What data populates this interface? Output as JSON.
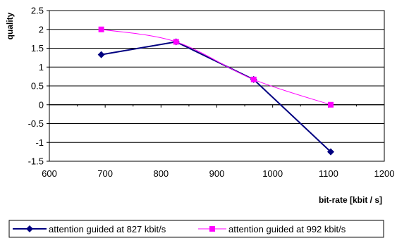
{
  "chart_data": {
    "type": "line",
    "xlabel": "bit-rate [kbit / s]",
    "ylabel": "quality",
    "xlim": [
      600,
      1200
    ],
    "ylim": [
      -1.5,
      2.5
    ],
    "xticks": [
      600,
      700,
      800,
      900,
      1000,
      1100,
      1200
    ],
    "yticks": [
      2.5,
      2,
      1.5,
      1,
      0.5,
      0,
      -0.5,
      -1,
      -1.5
    ],
    "xtick_labels": [
      "600",
      "700",
      "800",
      "900",
      "1000",
      "1100",
      "1200"
    ],
    "ytick_labels": [
      "2.5",
      "2",
      "1.5",
      "1",
      "0.5",
      "0",
      "-0.5",
      "-1",
      "-1.5"
    ],
    "grid": "horizontal",
    "legend_position": "bottom",
    "series": [
      {
        "name": "attention guided at 827 kbit/s",
        "color": "#000080",
        "marker": "diamond",
        "x": [
          693,
          827,
          966,
          1104
        ],
        "y": [
          1.33,
          1.67,
          0.67,
          -1.25
        ]
      },
      {
        "name": "attention guided at 992 kbit/s",
        "color": "#FF00FF",
        "marker": "square",
        "x": [
          693,
          827,
          966,
          1104
        ],
        "y": [
          2.0,
          1.67,
          0.67,
          0.0
        ]
      }
    ]
  }
}
